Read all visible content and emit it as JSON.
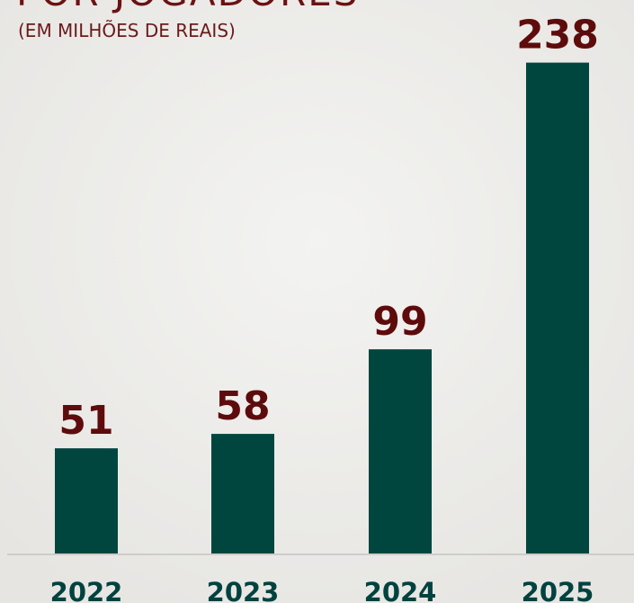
{
  "chart_data": {
    "type": "bar",
    "title": "POR JOGADORES",
    "subtitle": "(EM MILHÕES DE REAIS)",
    "categories": [
      "2022",
      "2023",
      "2024",
      "2025"
    ],
    "values": [
      51,
      58,
      99,
      238
    ],
    "color": "#00463f",
    "ylim": [
      0,
      240
    ]
  }
}
